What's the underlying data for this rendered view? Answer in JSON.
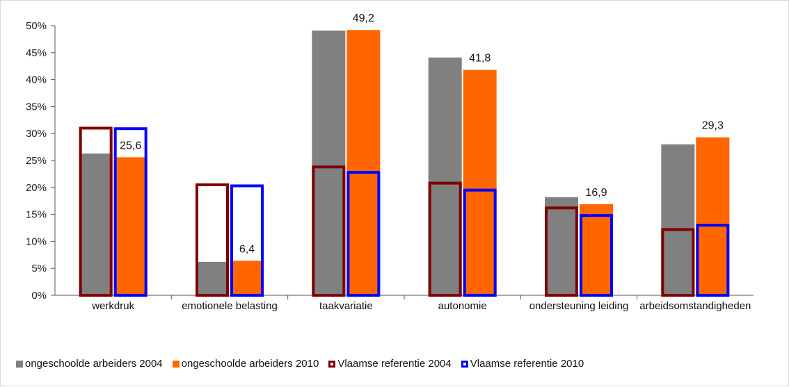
{
  "chart_data": {
    "type": "bar",
    "categories": [
      "werkdruk",
      "emotionele belasting",
      "taakvariatie",
      "autonomie",
      "ondersteuning leiding",
      "arbeidsomstandigheden"
    ],
    "ylim": [
      0,
      50
    ],
    "yticks": [
      0,
      5,
      10,
      15,
      20,
      25,
      30,
      35,
      40,
      45,
      50
    ],
    "ytick_labels": [
      "0%",
      "5%",
      "10%",
      "15%",
      "20%",
      "25%",
      "30%",
      "35%",
      "40%",
      "45%",
      "50%"
    ],
    "series": [
      {
        "name": "ongeschoolde arbeiders 2004",
        "style": "filled",
        "color": "#808080",
        "values": [
          26.3,
          6.2,
          49.1,
          44.1,
          18.2,
          28.0
        ]
      },
      {
        "name": "ongeschoolde arbeiders 2010",
        "style": "filled",
        "color": "#ff6600",
        "values": [
          25.6,
          6.4,
          49.2,
          41.8,
          16.9,
          29.3
        ]
      },
      {
        "name": "Vlaamse referentie 2004",
        "style": "outline",
        "color": "#7f0000",
        "values": [
          31.0,
          20.5,
          23.8,
          20.8,
          16.2,
          12.2
        ]
      },
      {
        "name": "Vlaamse referentie 2010",
        "style": "outline",
        "color": "#0000ff",
        "values": [
          30.9,
          20.3,
          22.8,
          19.5,
          14.8,
          13.0
        ]
      }
    ],
    "data_labels": [
      "25,6",
      "6,4",
      "49,2",
      "41,8",
      "16,9",
      "29,3"
    ],
    "legend": "bottom",
    "grid": false
  }
}
